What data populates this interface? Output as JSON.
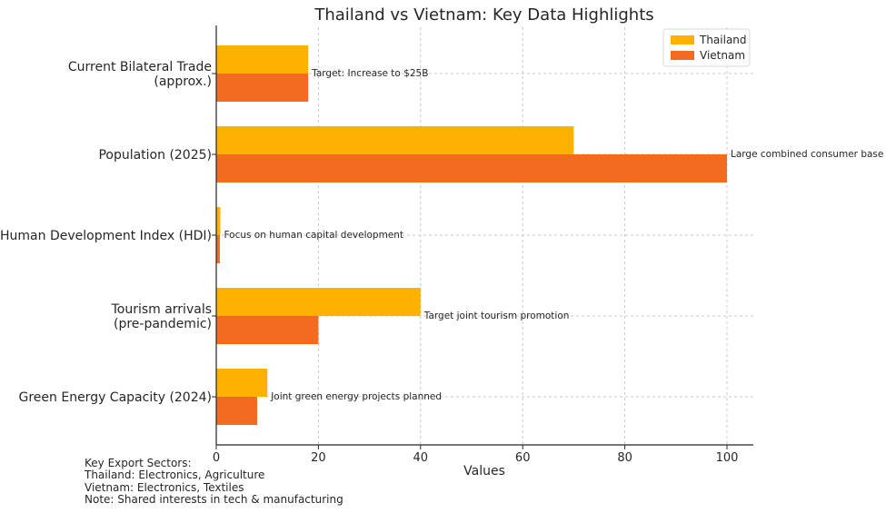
{
  "chart_data": {
    "type": "bar",
    "orientation": "horizontal",
    "title": "Thailand vs Vietnam: Key Data Highlights",
    "xlabel": "Values",
    "ylabel": "",
    "xlim": [
      0,
      105
    ],
    "xticks": [
      0,
      20,
      40,
      60,
      80,
      100
    ],
    "grid": true,
    "legend_position": "top-right",
    "categories": [
      [
        "Current Bilateral Trade",
        "(approx.)"
      ],
      [
        "Population (2025)"
      ],
      [
        "Human Development Index (HDI)"
      ],
      [
        "Tourism arrivals",
        "(pre-pandemic)"
      ],
      [
        "Green Energy Capacity (2024)"
      ]
    ],
    "series": [
      {
        "name": "Thailand",
        "color": "#ffb000",
        "values": [
          18,
          70,
          0.8,
          40,
          10
        ]
      },
      {
        "name": "Vietnam",
        "color": "#f26b21",
        "values": [
          18,
          100,
          0.7,
          20,
          8
        ]
      }
    ],
    "annotations": [
      "Target: Increase to $25B",
      "Large combined consumer base",
      "Focus on human capital development",
      "Target joint tourism promotion",
      "Joint green energy projects planned"
    ]
  },
  "note": {
    "line1": "Key Export Sectors:",
    "line2": "Thailand: Electronics, Agriculture",
    "line3": "Vietnam: Electronics, Textiles",
    "line4": "Note: Shared interests in tech & manufacturing"
  }
}
